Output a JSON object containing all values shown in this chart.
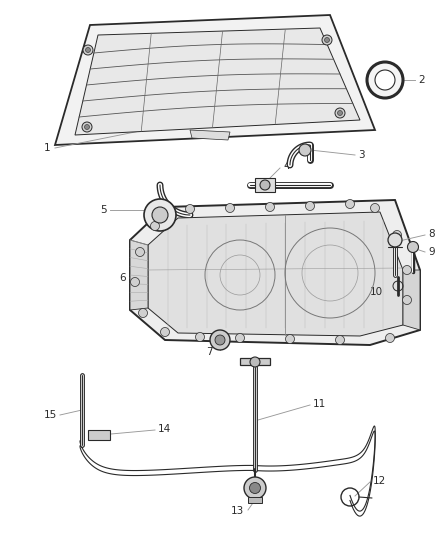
{
  "bg_color": "#ffffff",
  "lc": "#2a2a2a",
  "leac": "#999999",
  "lfc": "#555555",
  "label_fs": 7.5,
  "fig_width": 4.38,
  "fig_height": 5.33,
  "dpi": 100
}
